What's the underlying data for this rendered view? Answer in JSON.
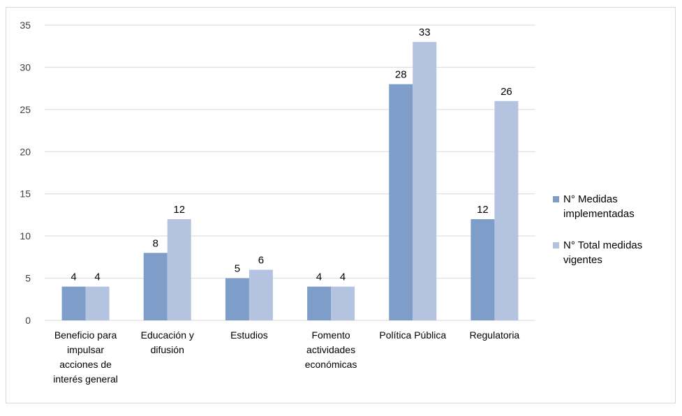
{
  "chart_data": {
    "type": "bar",
    "title": "",
    "xlabel": "",
    "ylabel": "",
    "ylim": [
      0,
      35
    ],
    "yticks": [
      0,
      5,
      10,
      15,
      20,
      25,
      30,
      35
    ],
    "grid": true,
    "legend_position": "right",
    "categories": [
      [
        "Beneficio para",
        "impulsar",
        "acciones de",
        "interés general"
      ],
      [
        "Educación y",
        "difusión"
      ],
      [
        "Estudios"
      ],
      [
        "Fomento",
        "actividades",
        "económicas"
      ],
      [
        "Política Pública"
      ],
      [
        "Regulatoria"
      ]
    ],
    "series": [
      {
        "name": [
          "N° Medidas",
          "implementadas"
        ],
        "color": "#7f9dc9",
        "values": [
          4,
          8,
          5,
          4,
          28,
          12
        ]
      },
      {
        "name": [
          "N° Total medidas",
          "vigentes"
        ],
        "color": "#b4c3df",
        "values": [
          4,
          12,
          6,
          4,
          33,
          26
        ]
      }
    ]
  }
}
